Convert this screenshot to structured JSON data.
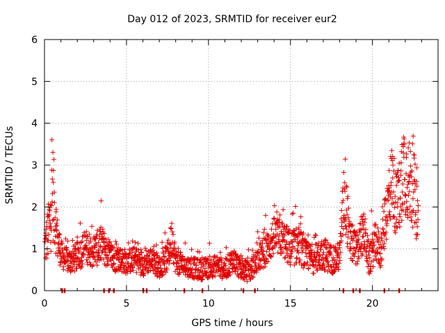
{
  "chart_data": {
    "type": "scatter",
    "title": "Day 012 of 2023, SRMTID for receiver eur2",
    "xlabel": "GPS time / hours",
    "ylabel": "SRMTID / TECUs",
    "xlim": [
      0,
      24
    ],
    "ylim": [
      0,
      6
    ],
    "grid": true,
    "marker": "+",
    "color": "#e00000",
    "x_ticks": [
      "0",
      "5",
      "10",
      "15",
      "20"
    ],
    "y_ticks": [
      "0",
      "1",
      "2",
      "3",
      "4",
      "5",
      "6"
    ],
    "baseline_points_x": [
      1.05,
      1.2,
      3.6,
      3.9,
      4.2,
      6.0,
      6.2,
      8.5,
      9.6,
      12.1,
      12.8,
      18.2,
      18.8,
      19.2,
      20.7,
      21.6
    ],
    "envelope": [
      [
        0.0,
        1.0,
        0.4
      ],
      [
        0.3,
        1.5,
        0.8
      ],
      [
        0.5,
        2.4,
        1.2
      ],
      [
        0.8,
        1.2,
        0.5
      ],
      [
        1.1,
        0.8,
        0.3
      ],
      [
        1.5,
        0.7,
        0.3
      ],
      [
        2.0,
        0.8,
        0.35
      ],
      [
        2.5,
        1.05,
        0.4
      ],
      [
        3.0,
        0.95,
        0.4
      ],
      [
        3.5,
        1.1,
        0.45
      ],
      [
        4.0,
        0.8,
        0.35
      ],
      [
        4.5,
        0.75,
        0.3
      ],
      [
        5.0,
        0.7,
        0.3
      ],
      [
        5.5,
        0.75,
        0.3
      ],
      [
        6.0,
        0.65,
        0.3
      ],
      [
        6.5,
        0.75,
        0.3
      ],
      [
        7.0,
        0.55,
        0.25
      ],
      [
        7.5,
        0.8,
        0.35
      ],
      [
        7.8,
        1.3,
        0.5
      ],
      [
        8.0,
        0.7,
        0.3
      ],
      [
        8.5,
        0.6,
        0.25
      ],
      [
        9.0,
        0.55,
        0.25
      ],
      [
        9.5,
        0.5,
        0.25
      ],
      [
        10.0,
        0.55,
        0.25
      ],
      [
        10.5,
        0.6,
        0.25
      ],
      [
        11.0,
        0.5,
        0.25
      ],
      [
        11.5,
        0.75,
        0.3
      ],
      [
        12.0,
        0.5,
        0.25
      ],
      [
        12.5,
        0.45,
        0.25
      ],
      [
        13.0,
        0.75,
        0.3
      ],
      [
        13.5,
        0.95,
        0.4
      ],
      [
        14.0,
        1.3,
        0.45
      ],
      [
        14.5,
        1.25,
        0.45
      ],
      [
        15.0,
        1.0,
        0.45
      ],
      [
        15.5,
        1.1,
        0.45
      ],
      [
        16.0,
        0.8,
        0.35
      ],
      [
        16.5,
        0.75,
        0.35
      ],
      [
        17.0,
        0.9,
        0.4
      ],
      [
        17.5,
        0.75,
        0.35
      ],
      [
        18.0,
        0.8,
        0.35
      ],
      [
        18.3,
        2.5,
        1.0
      ],
      [
        18.6,
        1.2,
        0.5
      ],
      [
        19.0,
        1.0,
        0.4
      ],
      [
        19.5,
        1.4,
        0.5
      ],
      [
        19.8,
        0.7,
        0.35
      ],
      [
        20.2,
        1.2,
        0.5
      ],
      [
        20.5,
        0.9,
        0.4
      ],
      [
        20.8,
        1.7,
        0.6
      ],
      [
        21.2,
        2.7,
        0.9
      ],
      [
        21.5,
        1.9,
        0.8
      ],
      [
        21.9,
        3.0,
        1.1
      ],
      [
        22.2,
        2.6,
        1.0
      ],
      [
        22.5,
        2.5,
        1.0
      ],
      [
        22.8,
        1.6,
        0.6
      ]
    ]
  }
}
